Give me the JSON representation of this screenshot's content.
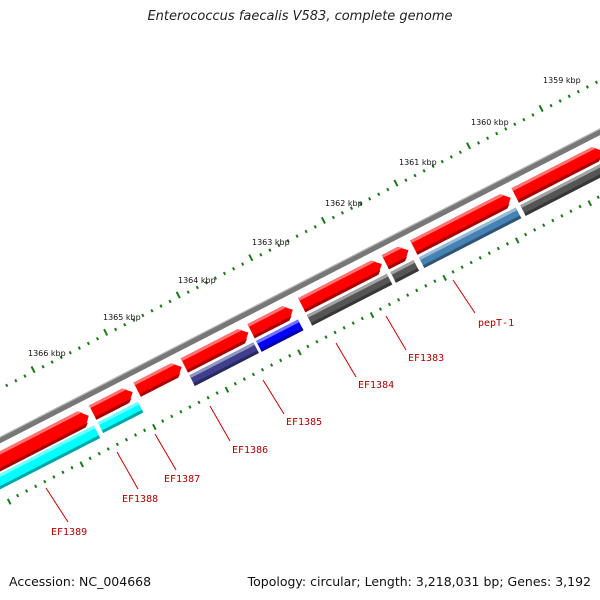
{
  "title": "Enterococcus faecalis V583, complete genome",
  "footer": {
    "accession": "Accession: NC_004668",
    "summary": "Topology: circular; Length: 3,218,031 bp; Genes: 3,192"
  },
  "scale_labels": [
    "1359 kbp",
    "1360 kbp",
    "1361 kbp",
    "1362 kbp",
    "1363 kbp",
    "1364 kbp",
    "1365 kbp",
    "1366 kbp"
  ],
  "gene_labels": [
    "pepT-1",
    "EF1383",
    "EF1384",
    "EF1385",
    "EF1386",
    "EF1387",
    "EF1388",
    "EF1389"
  ],
  "colors": {
    "forward_strand": "#ff0000",
    "backbone": "#777777",
    "tick": "#1a7a1a",
    "label": "#b00000",
    "cds_gray": "#555555",
    "cds_blue": "#0000ff",
    "cds_navy": "#3f3f8f",
    "cds_steelblue": "#4682b4",
    "cds_cyan": "#00ffff"
  }
}
